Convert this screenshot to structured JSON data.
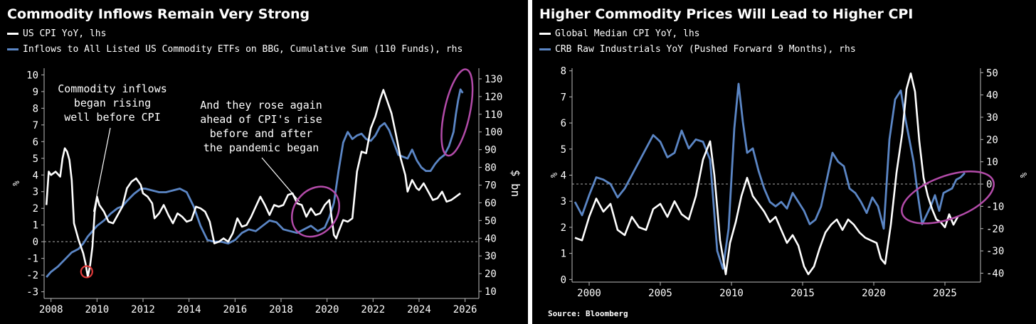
{
  "chart_data": [
    {
      "type": "line",
      "title": "Commodity Inflows Remain Very Strong",
      "legend": [
        {
          "name": "US CPI YoY, lhs",
          "color": "#ffffff"
        },
        {
          "name": "Inflows to All Listed US Commodity ETFs on BBG, Cumulative Sum (110 Funds), rhs",
          "color": "#5b86c5"
        }
      ],
      "xlim": [
        2007.7,
        2026.6
      ],
      "x_ticks": [
        2008,
        2010,
        2012,
        2014,
        2016,
        2018,
        2020,
        2022,
        2024,
        2026
      ],
      "y_left": {
        "label": "%",
        "lim": [
          -3.4,
          10.4
        ],
        "ticks": [
          -3,
          -2,
          -1,
          0,
          1,
          2,
          3,
          4,
          5,
          6,
          7,
          8,
          9,
          10
        ]
      },
      "y_right": {
        "label": "$ bn",
        "lim": [
          6,
          136
        ],
        "ticks": [
          10,
          20,
          30,
          40,
          50,
          60,
          70,
          80,
          90,
          100,
          110,
          120,
          130
        ]
      },
      "zero_line": 0,
      "series": [
        {
          "name": "US CPI YoY",
          "axis": "left",
          "color": "#ffffff",
          "x": [
            2007.8,
            2007.9,
            2008.0,
            2008.2,
            2008.4,
            2008.5,
            2008.6,
            2008.7,
            2008.8,
            2008.9,
            2009.0,
            2009.2,
            2009.4,
            2009.5,
            2009.6,
            2009.7,
            2009.8,
            2009.9,
            2010.0,
            2010.1,
            2010.3,
            2010.5,
            2010.7,
            2010.9,
            2011.1,
            2011.3,
            2011.5,
            2011.7,
            2011.9,
            2012.0,
            2012.2,
            2012.4,
            2012.5,
            2012.7,
            2012.9,
            2013.1,
            2013.3,
            2013.5,
            2013.7,
            2013.9,
            2014.1,
            2014.3,
            2014.5,
            2014.7,
            2014.9,
            2015.1,
            2015.3,
            2015.5,
            2015.7,
            2015.9,
            2016.1,
            2016.3,
            2016.5,
            2016.7,
            2016.9,
            2017.1,
            2017.3,
            2017.5,
            2017.7,
            2017.9,
            2018.1,
            2018.3,
            2018.5,
            2018.7,
            2018.9,
            2019.1,
            2019.3,
            2019.5,
            2019.7,
            2019.9,
            2020.1,
            2020.3,
            2020.4,
            2020.5,
            2020.7,
            2020.9,
            2021.1,
            2021.3,
            2021.5,
            2021.7,
            2021.9,
            2022.1,
            2022.3,
            2022.45,
            2022.6,
            2022.8,
            2023.0,
            2023.2,
            2023.4,
            2023.5,
            2023.7,
            2023.9,
            2024.0,
            2024.2,
            2024.4,
            2024.6,
            2024.8,
            2025.0,
            2025.2,
            2025.4,
            2025.6,
            2025.8
          ],
          "values": [
            2.2,
            4.2,
            4.0,
            4.2,
            3.9,
            5.0,
            5.6,
            5.4,
            4.9,
            3.7,
            1.1,
            0.1,
            -0.7,
            -1.3,
            -2.1,
            -1.4,
            -0.3,
            1.8,
            2.7,
            2.2,
            1.8,
            1.2,
            1.1,
            1.6,
            2.1,
            3.2,
            3.6,
            3.8,
            3.4,
            2.9,
            2.7,
            2.3,
            1.4,
            1.7,
            2.2,
            1.6,
            1.1,
            1.7,
            1.5,
            1.2,
            1.3,
            2.1,
            2.0,
            1.8,
            1.2,
            -0.1,
            0.0,
            0.2,
            0.0,
            0.5,
            1.4,
            0.9,
            1.0,
            1.5,
            2.1,
            2.7,
            2.2,
            1.6,
            2.2,
            2.1,
            2.2,
            2.8,
            2.9,
            2.3,
            2.2,
            1.5,
            2.0,
            1.6,
            1.7,
            2.2,
            2.5,
            0.4,
            0.2,
            0.6,
            1.3,
            1.2,
            1.4,
            4.2,
            5.4,
            5.3,
            6.8,
            7.5,
            8.5,
            9.1,
            8.5,
            7.7,
            6.4,
            5.0,
            4.0,
            3.0,
            3.7,
            3.2,
            3.1,
            3.5,
            3.0,
            2.5,
            2.6,
            3.0,
            2.4,
            2.5,
            2.7,
            2.9
          ]
        },
        {
          "name": "Inflows to All Listed US Commodity ETFs on BBG, Cumulative Sum (110 Funds)",
          "axis": "right",
          "color": "#5b86c5",
          "x": [
            2007.8,
            2008.0,
            2008.3,
            2008.6,
            2008.9,
            2009.2,
            2009.4,
            2009.6,
            2009.8,
            2010.0,
            2010.3,
            2010.6,
            2010.9,
            2011.1,
            2011.3,
            2011.6,
            2011.9,
            2012.1,
            2012.4,
            2012.7,
            2013.0,
            2013.3,
            2013.6,
            2013.9,
            2014.2,
            2014.5,
            2014.8,
            2015.1,
            2015.4,
            2015.7,
            2016.0,
            2016.3,
            2016.6,
            2016.9,
            2017.2,
            2017.5,
            2017.8,
            2018.1,
            2018.4,
            2018.7,
            2019.0,
            2019.3,
            2019.6,
            2019.9,
            2020.1,
            2020.3,
            2020.5,
            2020.7,
            2020.9,
            2021.1,
            2021.3,
            2021.5,
            2021.7,
            2021.9,
            2022.1,
            2022.3,
            2022.5,
            2022.7,
            2022.9,
            2023.1,
            2023.3,
            2023.5,
            2023.7,
            2023.9,
            2024.1,
            2024.3,
            2024.5,
            2024.7,
            2024.9,
            2025.1,
            2025.3,
            2025.5,
            2025.6,
            2025.7,
            2025.8,
            2025.9
          ],
          "values": [
            18,
            21,
            24,
            28,
            32,
            34,
            37,
            41,
            44,
            47,
            50,
            54,
            57,
            58,
            61,
            65,
            68,
            68,
            67,
            66,
            66,
            67,
            68,
            66,
            58,
            47,
            39,
            38,
            38,
            37,
            39,
            43,
            45,
            44,
            47,
            50,
            49,
            45,
            44,
            43,
            45,
            47,
            44,
            46,
            52,
            60,
            78,
            94,
            100,
            96,
            98,
            99,
            96,
            95,
            98,
            103,
            105,
            101,
            94,
            87,
            86,
            85,
            90,
            84,
            80,
            78,
            78,
            82,
            85,
            87,
            92,
            100,
            110,
            118,
            124,
            122
          ]
        }
      ],
      "annotations": [
        "Commodity inflows began rising well before CPI",
        "And they rose again ahead of CPI's rise before and after the pandemic began"
      ]
    },
    {
      "type": "line",
      "title": "Higher Commodity Prices Will Lead to Higher CPI",
      "legend": [
        {
          "name": "Global Median CPI YoY, lhs",
          "color": "#ffffff"
        },
        {
          "name": "CRB Raw Industrials YoY (Pushed Forward 9 Months), rhs",
          "color": "#5b86c5"
        }
      ],
      "xlim": [
        1998.8,
        2027.5
      ],
      "x_ticks": [
        2000,
        2005,
        2010,
        2015,
        2020,
        2025
      ],
      "y_left": {
        "label": "%",
        "lim": [
          -0.1,
          8.1
        ],
        "ticks": [
          0,
          1,
          2,
          3,
          4,
          5,
          6,
          7,
          8
        ]
      },
      "y_right": {
        "label": "%",
        "lim": [
          -44,
          52
        ],
        "ticks": [
          -40,
          -30,
          -20,
          -10,
          0,
          10,
          20,
          30,
          40,
          50
        ]
      },
      "zero_line_right": 0,
      "series": [
        {
          "name": "Global Median CPI YoY",
          "axis": "left",
          "color": "#ffffff",
          "x": [
            1999.0,
            1999.5,
            2000.0,
            2000.5,
            2001.0,
            2001.5,
            2002.0,
            2002.5,
            2003.0,
            2003.5,
            2004.0,
            2004.5,
            2005.0,
            2005.5,
            2006.0,
            2006.5,
            2007.0,
            2007.5,
            2008.0,
            2008.5,
            2008.8,
            2009.2,
            2009.6,
            2009.9,
            2010.3,
            2010.7,
            2011.1,
            2011.5,
            2011.9,
            2012.3,
            2012.7,
            2013.1,
            2013.5,
            2013.9,
            2014.3,
            2014.7,
            2015.1,
            2015.4,
            2015.8,
            2016.2,
            2016.6,
            2017.0,
            2017.4,
            2017.8,
            2018.2,
            2018.6,
            2019.0,
            2019.4,
            2019.8,
            2020.2,
            2020.5,
            2020.8,
            2021.2,
            2021.6,
            2022.0,
            2022.3,
            2022.6,
            2022.9,
            2023.2,
            2023.5,
            2023.8,
            2024.1,
            2024.4,
            2024.7,
            2025.0,
            2025.3,
            2025.6,
            2025.9
          ],
          "values": [
            1.6,
            1.5,
            2.4,
            3.1,
            2.6,
            2.9,
            1.9,
            1.7,
            2.4,
            2.0,
            1.9,
            2.7,
            2.9,
            2.4,
            3.0,
            2.5,
            2.3,
            3.2,
            4.6,
            5.3,
            4.0,
            1.5,
            0.2,
            1.4,
            2.2,
            3.2,
            3.9,
            3.2,
            2.9,
            2.6,
            2.2,
            2.4,
            1.9,
            1.4,
            1.7,
            1.3,
            0.5,
            0.2,
            0.5,
            1.2,
            1.8,
            2.1,
            2.3,
            1.9,
            2.3,
            2.1,
            1.8,
            1.6,
            1.5,
            1.4,
            0.8,
            0.6,
            2.1,
            4.1,
            5.6,
            7.3,
            7.9,
            7.2,
            5.3,
            3.9,
            3.2,
            2.7,
            2.3,
            2.2,
            2.0,
            2.5,
            2.1,
            2.4
          ]
        },
        {
          "name": "CRB Raw Industrials YoY (Pushed Forward 9 Months)",
          "axis": "right",
          "color": "#5b86c5",
          "x": [
            1999.0,
            1999.5,
            2000.0,
            2000.5,
            2001.0,
            2001.5,
            2002.0,
            2002.5,
            2003.0,
            2003.5,
            2004.0,
            2004.5,
            2005.0,
            2005.5,
            2006.0,
            2006.5,
            2007.0,
            2007.5,
            2008.0,
            2008.5,
            2009.0,
            2009.4,
            2009.8,
            2010.2,
            2010.5,
            2010.8,
            2011.1,
            2011.5,
            2011.9,
            2012.3,
            2012.7,
            2013.1,
            2013.5,
            2013.9,
            2014.3,
            2014.7,
            2015.1,
            2015.5,
            2015.9,
            2016.3,
            2016.7,
            2017.1,
            2017.5,
            2017.9,
            2018.3,
            2018.7,
            2019.1,
            2019.5,
            2019.9,
            2020.3,
            2020.7,
            2021.1,
            2021.5,
            2021.9,
            2022.2,
            2022.5,
            2022.8,
            2023.1,
            2023.4,
            2023.7,
            2024.0,
            2024.3,
            2024.6,
            2024.9,
            2025.2,
            2025.5,
            2025.8,
            2026.1,
            2026.4
          ],
          "values": [
            -8,
            -14,
            -5,
            3,
            2,
            0,
            -6,
            -2,
            4,
            10,
            16,
            22,
            19,
            12,
            14,
            24,
            16,
            20,
            19,
            11,
            -30,
            -38,
            -20,
            25,
            45,
            28,
            14,
            16,
            6,
            -2,
            -8,
            -10,
            -8,
            -11,
            -4,
            -8,
            -12,
            -18,
            -16,
            -10,
            2,
            14,
            10,
            8,
            -2,
            -4,
            -8,
            -13,
            -6,
            -10,
            -20,
            20,
            38,
            42,
            30,
            20,
            10,
            -5,
            -18,
            -14,
            -10,
            -5,
            -12,
            -4,
            -3,
            -2,
            2,
            3,
            5
          ]
        }
      ],
      "annotations": [],
      "source": "Source: Bloomberg"
    }
  ]
}
